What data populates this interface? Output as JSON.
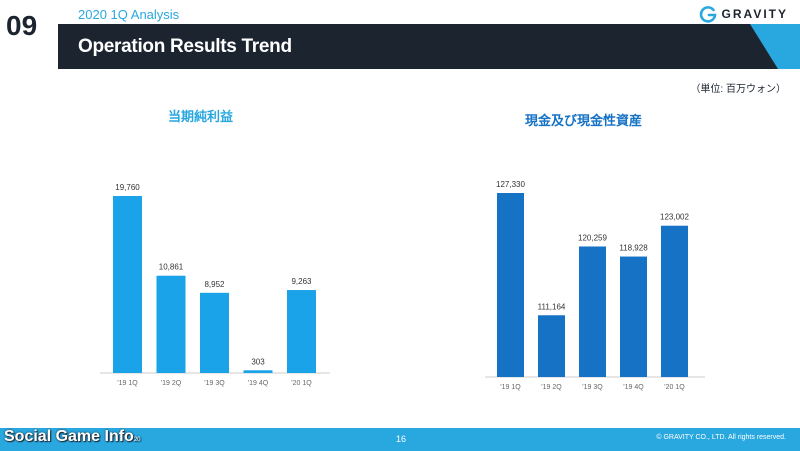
{
  "header": {
    "page_number": "09",
    "subtitle": "2020 1Q Analysis",
    "title": "Operation Results Trend",
    "logo_text": "GRAVITY"
  },
  "unit_label": "（単位: 百万ウォン）",
  "colors": {
    "accent": "#29a8e0",
    "dark": "#1c2430",
    "bar_left": "#1aa3e8",
    "bar_right": "#1672c4",
    "axis_text": "#666666"
  },
  "chart_data": [
    {
      "type": "bar",
      "title": "当期純利益",
      "categories": [
        "'19 1Q",
        "'19 2Q",
        "'19 3Q",
        "'19 4Q",
        "'20 1Q"
      ],
      "values": [
        19760,
        10861,
        8952,
        303,
        9263
      ],
      "value_labels": [
        "19,760",
        "10,861",
        "8,952",
        "303",
        "9,263"
      ],
      "ylim": [
        0,
        19760
      ],
      "grid": false,
      "legend": "none"
    },
    {
      "type": "bar",
      "title": "現金及び現金性資産",
      "categories": [
        "'19 1Q",
        "'19 2Q",
        "'19 3Q",
        "'19 4Q",
        "'20 1Q"
      ],
      "values": [
        127330,
        111164,
        120259,
        118928,
        123002
      ],
      "value_labels": [
        "127,330",
        "111,164",
        "120,259",
        "118,928",
        "123,002"
      ],
      "ylim": [
        103000,
        127330
      ],
      "grid": false,
      "legend": "none"
    }
  ],
  "footer": {
    "page": "16",
    "copyright": "© GRAVITY CO., LTD. All rights reserved.",
    "watermark": "Social Game Info",
    "watermark_suffix": "20"
  }
}
